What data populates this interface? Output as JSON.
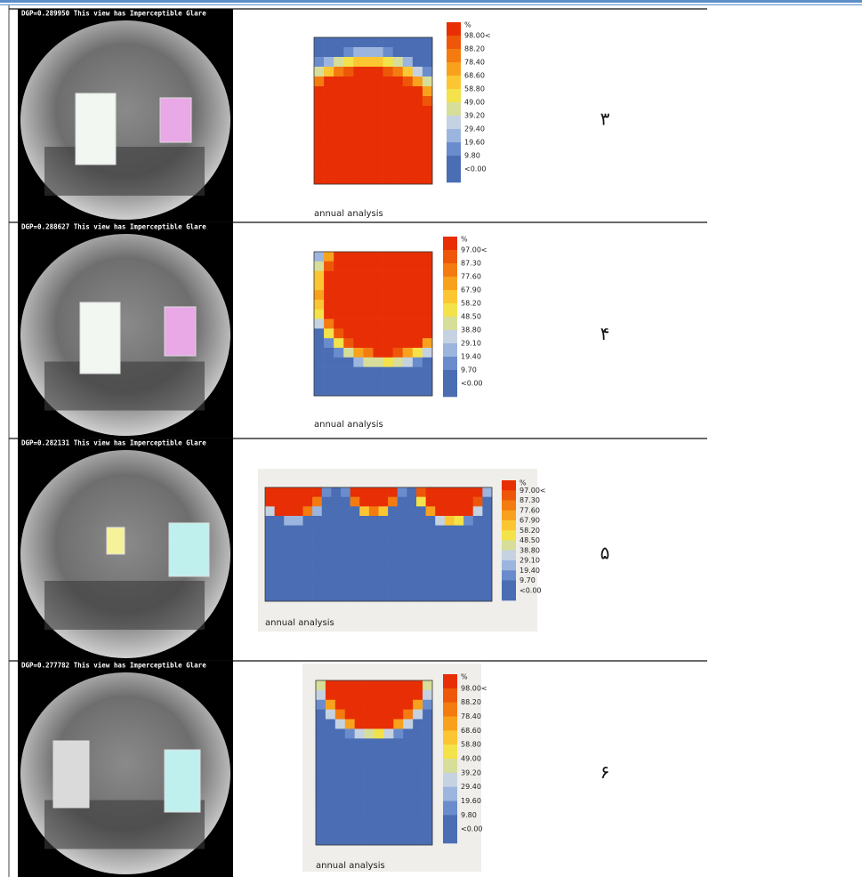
{
  "rows": [
    {
      "glare_caption": "DGP=0.289950 This view has Imperceptible Glare",
      "legend_title": "%",
      "legend_labels": [
        "98.00<",
        "88.20",
        "78.40",
        "68.60",
        "58.80",
        "49.00",
        "39.20",
        "29.40",
        "19.60",
        "9.80",
        "<0.00"
      ],
      "analysis_label": "annual analysis",
      "number": "۳"
    },
    {
      "glare_caption": "DGP=0.288627 This view has Imperceptible Glare",
      "legend_title": "%",
      "legend_labels": [
        "97.00<",
        "87.30",
        "77.60",
        "67.90",
        "58.20",
        "48.50",
        "38.80",
        "29.10",
        "19.40",
        "9.70",
        "<0.00"
      ],
      "analysis_label": "annual analysis",
      "number": "۴"
    },
    {
      "glare_caption": "DGP=0.282131 This view has Imperceptible Glare",
      "legend_title": "%",
      "legend_labels": [
        "97.00<",
        "87.30",
        "77.60",
        "67.90",
        "58.20",
        "48.50",
        "38.80",
        "29.10",
        "19.40",
        "9.70",
        "<0.00"
      ],
      "analysis_label": "annual analysis",
      "number": "۵"
    },
    {
      "glare_caption": "DGP=0.277782 This view has Imperceptible Glare",
      "legend_title": "%",
      "legend_labels": [
        "98.00<",
        "88.20",
        "78.40",
        "68.60",
        "58.80",
        "49.00",
        "39.20",
        "29.40",
        "19.60",
        "9.80",
        "<0.00"
      ],
      "analysis_label": "annual analysis",
      "number": "۶"
    }
  ]
}
